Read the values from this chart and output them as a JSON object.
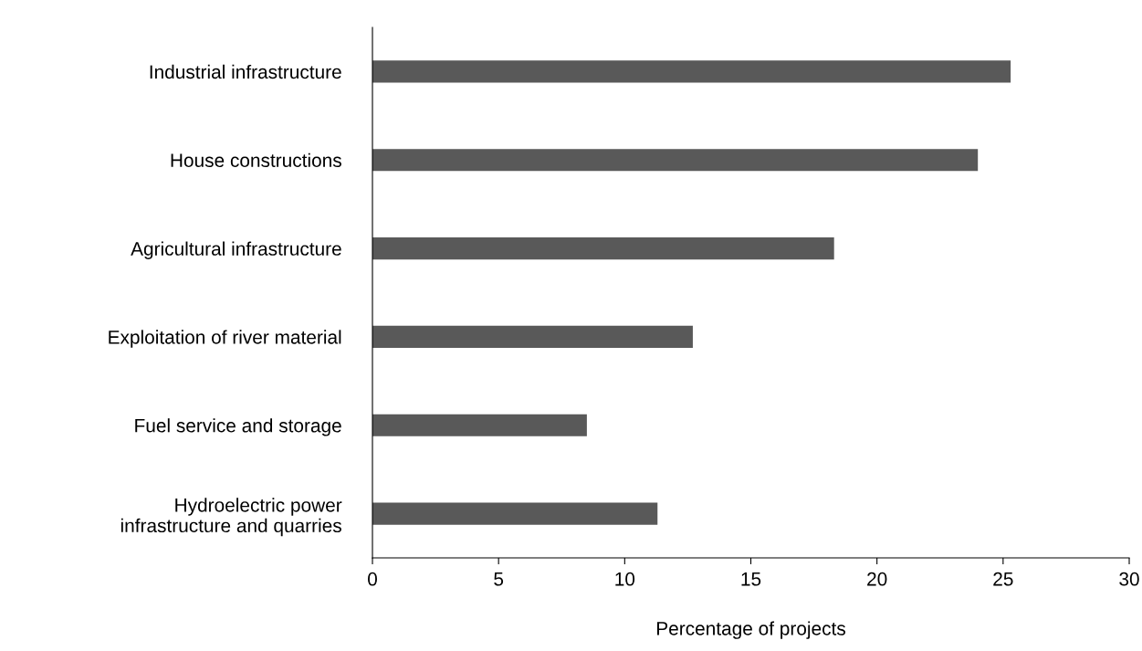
{
  "chart_data": {
    "type": "bar",
    "orientation": "horizontal",
    "xlabel": "Percentage of projects",
    "categories": [
      "Industrial infrastructure",
      "House constructions",
      "Agricultural infrastructure",
      "Exploitation of river material",
      "Fuel service and storage",
      "Hydroelectric power\ninfrastructure and quarries"
    ],
    "values": [
      25.3,
      24.0,
      18.3,
      12.7,
      8.5,
      11.3
    ],
    "color": "#595959",
    "xlim": [
      0,
      30
    ],
    "xticks": [
      0,
      5,
      10,
      15,
      20,
      25,
      30
    ],
    "grid": false,
    "legend": false
  }
}
